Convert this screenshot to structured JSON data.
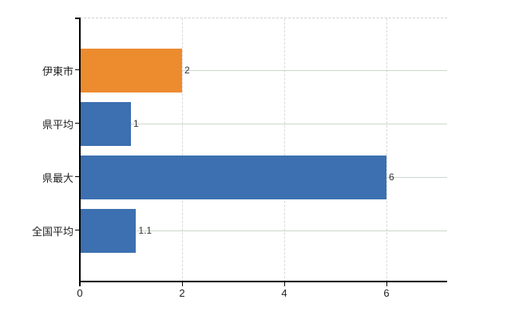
{
  "chart_data": {
    "type": "bar",
    "orientation": "horizontal",
    "categories": [
      "伊東市",
      "県平均",
      "県最大",
      "全国平均"
    ],
    "values": [
      2,
      1,
      6,
      1.1
    ],
    "value_labels": [
      "2",
      "1",
      "6",
      "1.1"
    ],
    "colors": [
      "#ED8B2F",
      "#3C70B0",
      "#3C70B0",
      "#3C70B0"
    ],
    "series": [
      {
        "name": "伊東市",
        "value": 2,
        "color": "#ED8B2F"
      },
      {
        "name": "県平均",
        "value": 1,
        "color": "#3C70B0"
      },
      {
        "name": "県最大",
        "value": 6,
        "color": "#3C70B0"
      },
      {
        "name": "全国平均",
        "value": 1.1,
        "color": "#3C70B0"
      }
    ],
    "x_ticks": [
      "0",
      "2",
      "4",
      "6"
    ],
    "xlim": [
      0,
      7.2
    ],
    "grid": true,
    "legend_position": "none",
    "accent_orange": "#ED8B2F",
    "accent_blue": "#3C70B0",
    "gridline_color_h": "#ccd6cc",
    "gridline_color_v": "#d9d9d9",
    "axis_color": "#000000"
  }
}
